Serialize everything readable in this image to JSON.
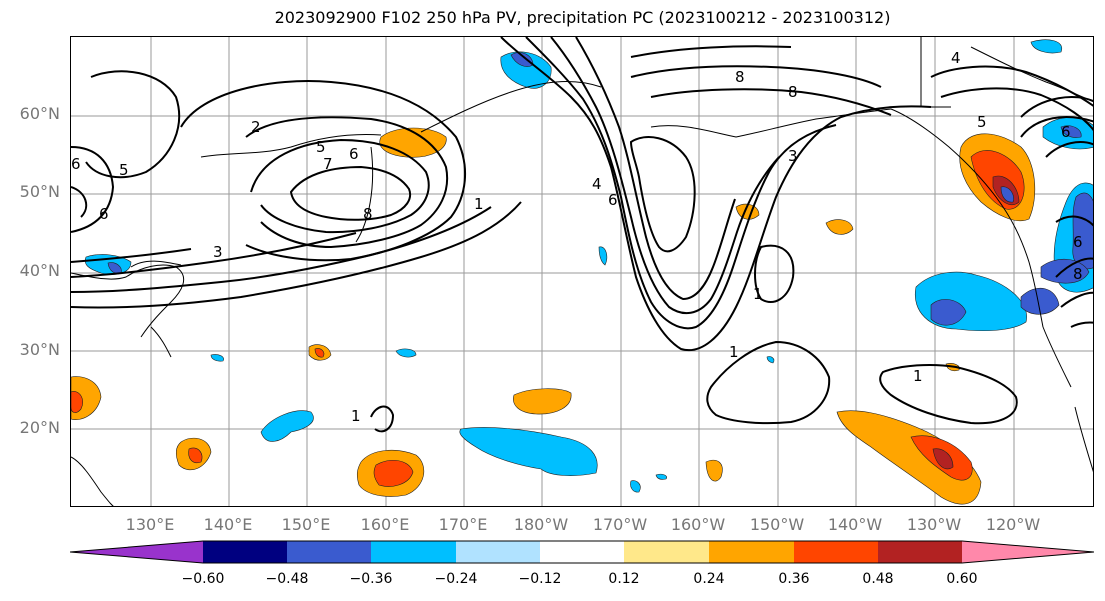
{
  "title": "2023092900 F102 250 hPa PV, precipitation PC (2023100212 - 2023100312)",
  "map": {
    "lat_labels": [
      "60°N",
      "50°N",
      "40°N",
      "30°N",
      "20°N"
    ],
    "lon_labels": [
      "130°E",
      "140°E",
      "150°E",
      "160°E",
      "170°E",
      "180°W",
      "170°W",
      "160°W",
      "150°W",
      "140°W",
      "130°W",
      "120°W"
    ],
    "contour_labels": [
      "2",
      "5",
      "7",
      "6",
      "8",
      "5",
      "6",
      "6",
      "3",
      "1",
      "8",
      "8",
      "4",
      "6",
      "3",
      "1",
      "1",
      "1",
      "1",
      "4",
      "5",
      "6",
      "6",
      "8"
    ],
    "colors": {
      "contour": "#000000",
      "grid": "#999999",
      "coast": "#000000"
    }
  },
  "colorbar": {
    "ticks": [
      "−0.60",
      "−0.48",
      "−0.36",
      "−0.24",
      "−0.12",
      "0.12",
      "0.24",
      "0.36",
      "0.48",
      "0.60"
    ],
    "colors": [
      "#9933cc",
      "#000080",
      "#3a5bcf",
      "#00bfff",
      "#b0e2ff",
      "#ffffff",
      "#ffe88a",
      "#ffa500",
      "#ff4500",
      "#b22222",
      "#ff88aa"
    ]
  }
}
